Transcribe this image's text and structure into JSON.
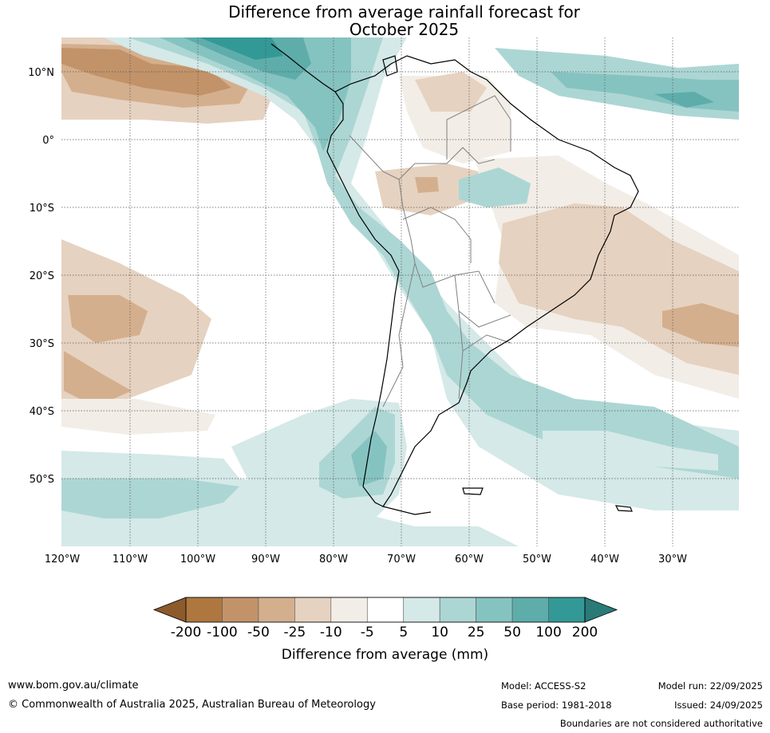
{
  "title": {
    "line1": "Difference from average rainfall forecast for",
    "line2": "October 2025"
  },
  "map": {
    "lat_labels": [
      "10°N",
      "0°",
      "10°S",
      "20°S",
      "30°S",
      "40°S",
      "50°S"
    ],
    "lon_labels": [
      "120°W",
      "110°W",
      "100°W",
      "90°W",
      "80°W",
      "70°W",
      "60°W",
      "50°W",
      "40°W",
      "30°W"
    ],
    "extent": {
      "lon_min": -120,
      "lon_max": -20,
      "lat_min": -60,
      "lat_max": 15
    }
  },
  "colorbar": {
    "ticks": [
      "-200",
      "-100",
      "-50",
      "-25",
      "-10",
      "-5",
      "5",
      "10",
      "25",
      "50",
      "100",
      "200"
    ],
    "colors": [
      "#8c5a2b",
      "#ad773f",
      "#c29369",
      "#d4af8e",
      "#e6d2c0",
      "#f2ede7",
      "#ffffff",
      "#d4e9e8",
      "#acd6d4",
      "#85c3c1",
      "#5eadab",
      "#339996",
      "#2a7a78"
    ],
    "label": "Difference from average (mm)"
  },
  "footer": {
    "url": "www.bom.gov.au/climate",
    "copyright": "© Commonwealth of Australia 2025, Australian Bureau of Meteorology",
    "model": "Model: ACCESS-S2",
    "base_period": "Base period: 1981-2018",
    "model_run": "Model run: 22/09/2025",
    "issued": "Issued: 24/09/2025",
    "disclaimer": "Boundaries are not considered authoritative"
  }
}
